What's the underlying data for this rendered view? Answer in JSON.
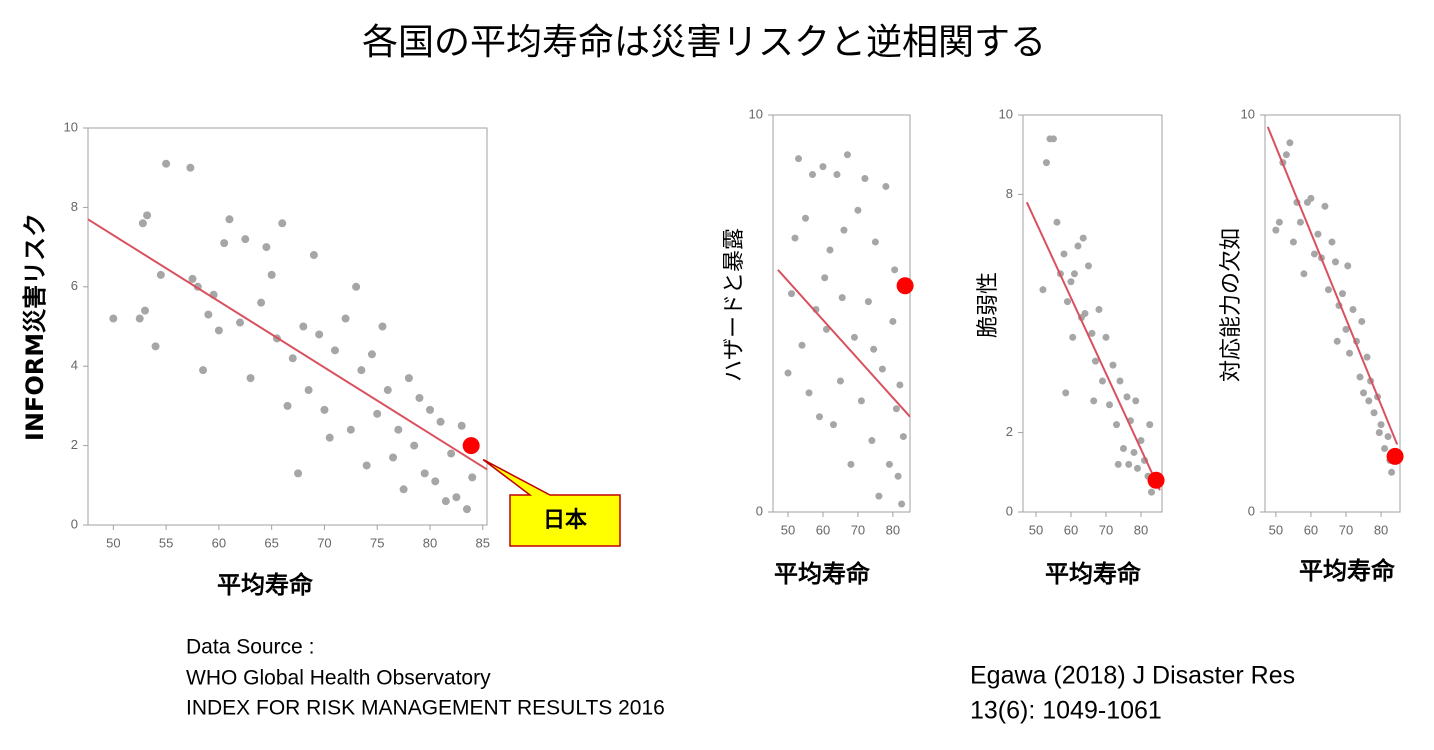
{
  "title": "各国の平均寿命は災害リスクと逆相関する",
  "source": [
    "Data Source :",
    "WHO Global Health Observatory",
    "INDEX FOR RISK MANAGEMENT RESULTS 2016"
  ],
  "citation": [
    "Egawa (2018) J Disaster Res",
    "13(6): 1049-1061"
  ],
  "chart_data": [
    {
      "type": "scatter",
      "xlabel": "平均寿命",
      "ylabel": "INFORM災害リスク",
      "annotation": "日本",
      "xlim": [
        47.6,
        85.4
      ],
      "ylim": [
        0,
        10
      ],
      "xticks": [
        50,
        55,
        60,
        65,
        70,
        75,
        80,
        85
      ],
      "yticks": [
        0,
        2,
        4,
        6,
        8,
        10
      ],
      "color": "#a6a6a6",
      "x": [
        50,
        52.5,
        53,
        52.8,
        53.2,
        54,
        54.5,
        55,
        57.3,
        57.5,
        58,
        58.5,
        59,
        59.5,
        60,
        60.5,
        61,
        62,
        62.5,
        63,
        64,
        64.5,
        65,
        65.5,
        66,
        66.5,
        67,
        67.5,
        68,
        68.5,
        69,
        69.5,
        70,
        70.5,
        71,
        72,
        72.5,
        73,
        73.5,
        74,
        74.5,
        75,
        75.5,
        76,
        76.5,
        77,
        77.5,
        78,
        78.5,
        79,
        79.5,
        80,
        80.5,
        81,
        81.5,
        82,
        82.5,
        83,
        83.5,
        84
      ],
      "values": [
        5.2,
        5.2,
        5.4,
        7.6,
        7.8,
        4.5,
        6.3,
        9.1,
        9,
        6.2,
        6,
        3.9,
        5.3,
        5.8,
        4.9,
        7.1,
        7.7,
        5.1,
        7.2,
        3.7,
        5.6,
        7,
        6.3,
        4.7,
        7.6,
        3,
        4.2,
        1.3,
        5,
        3.4,
        6.8,
        4.8,
        2.9,
        2.2,
        4.4,
        5.2,
        2.4,
        6,
        3.9,
        1.5,
        4.3,
        2.8,
        5,
        3.4,
        1.7,
        2.4,
        0.9,
        3.7,
        2,
        3.2,
        1.3,
        2.9,
        1.1,
        2.6,
        0.6,
        1.8,
        0.7,
        2.5,
        0.4,
        1.2
      ],
      "trend": {
        "x": [
          47.6,
          85.4
        ],
        "values": [
          7.7,
          1.4
        ],
        "color": "#d9515e"
      },
      "highlight": {
        "x": 83.9,
        "value": 2.0,
        "color": "#ff0000"
      }
    },
    {
      "type": "scatter",
      "xlabel": "平均寿命",
      "ylabel": "ハザードと暴露",
      "xlim": [
        45.7,
        84.9
      ],
      "ylim": [
        0,
        10
      ],
      "xticks": [
        50,
        60,
        70,
        80
      ],
      "yticks": [
        0,
        10
      ],
      "color": "#a6a6a6",
      "x": [
        50,
        51,
        52,
        53,
        54,
        55,
        56,
        57,
        58,
        59,
        60,
        61,
        62,
        63,
        64,
        65,
        66,
        67,
        68,
        69,
        70,
        71,
        72,
        73,
        74,
        75,
        76,
        77,
        78,
        79,
        80,
        80.5,
        81,
        81.5,
        82,
        82.5,
        83,
        74.5,
        65.5,
        60.5
      ],
      "values": [
        3.5,
        5.5,
        6.9,
        8.9,
        4.2,
        7.4,
        3,
        8.5,
        5.1,
        2.4,
        8.7,
        4.6,
        6.6,
        2.2,
        8.5,
        3.3,
        7.1,
        9,
        1.2,
        4.4,
        7.6,
        2.8,
        8.4,
        5.3,
        1.8,
        6.8,
        0.4,
        3.6,
        8.2,
        1.2,
        4.8,
        6.1,
        2.6,
        0.9,
        3.2,
        0.2,
        1.9,
        4.1,
        5.4,
        5.9
      ],
      "trend": {
        "x": [
          47.1,
          84.9
        ],
        "values": [
          6.1,
          2.4
        ],
        "color": "#d9515e"
      },
      "highlight": {
        "x": 83.5,
        "value": 5.7,
        "color": "#ff0000"
      }
    },
    {
      "type": "scatter",
      "xlabel": "平均寿命",
      "ylabel": "脆弱性",
      "xlim": [
        46.3,
        86
      ],
      "ylim": [
        0,
        10
      ],
      "xticks": [
        50,
        60,
        70,
        80
      ],
      "yticks": [
        0,
        2,
        8,
        10
      ],
      "color": "#a6a6a6",
      "x": [
        52,
        53,
        54,
        55,
        56,
        57,
        58,
        59,
        60,
        60.5,
        61,
        62,
        63,
        64,
        65,
        66,
        67,
        68,
        69,
        70,
        71,
        72,
        73,
        74,
        75,
        76,
        76.5,
        77,
        78,
        78.5,
        79,
        80,
        81,
        82,
        82.5,
        83,
        73.5,
        66.5,
        63.5,
        58.5
      ],
      "values": [
        5.6,
        8.8,
        9.4,
        9.4,
        7.3,
        6,
        6.5,
        5.3,
        5.8,
        4.4,
        6,
        6.7,
        4.9,
        5,
        6.2,
        4.5,
        3.8,
        5.1,
        3.3,
        4.4,
        2.7,
        3.7,
        2.2,
        3.3,
        1.6,
        2.9,
        1.2,
        2.3,
        1.5,
        2.8,
        1.1,
        1.8,
        1.3,
        0.9,
        2.2,
        0.5,
        1.2,
        2.8,
        6.9,
        3
      ],
      "trend": {
        "x": [
          47.4,
          85.4
        ],
        "values": [
          7.8,
          0.55
        ],
        "color": "#d9515e"
      },
      "highlight": {
        "x": 84.3,
        "value": 0.8,
        "color": "#ff0000"
      }
    },
    {
      "type": "scatter",
      "xlabel": "平均寿命",
      "ylabel": "対応能力の欠如",
      "xlim": [
        46.9,
        85.4
      ],
      "ylim": [
        0,
        10
      ],
      "xticks": [
        50,
        60,
        70,
        80
      ],
      "yticks": [
        0,
        10
      ],
      "color": "#a6a6a6",
      "x": [
        50,
        51,
        52,
        53,
        54,
        55,
        56,
        57,
        58,
        59,
        60,
        61,
        62,
        63,
        64,
        65,
        66,
        67,
        67.5,
        68,
        69,
        70,
        71,
        72,
        73,
        74,
        74.5,
        75,
        76,
        76.5,
        77,
        78,
        79,
        79.5,
        80,
        81,
        82,
        82.5,
        83,
        70.5
      ],
      "values": [
        7.1,
        7.3,
        8.8,
        9,
        9.3,
        6.8,
        7.8,
        7.3,
        6,
        7.8,
        7.9,
        6.5,
        7,
        6.4,
        7.7,
        5.6,
        6.8,
        6.3,
        4.3,
        5.2,
        5.5,
        4.6,
        4,
        5.1,
        4.3,
        3.4,
        4.8,
        3,
        3.9,
        2.8,
        3.3,
        2.5,
        2.9,
        2,
        2.2,
        1.6,
        1.9,
        1.3,
        1,
        6.2
      ],
      "trend": {
        "x": [
          47.7,
          84.6
        ],
        "values": [
          9.7,
          1.7
        ],
        "color": "#d9515e"
      },
      "highlight": {
        "x": 84,
        "value": 1.4,
        "color": "#ff0000"
      }
    }
  ]
}
